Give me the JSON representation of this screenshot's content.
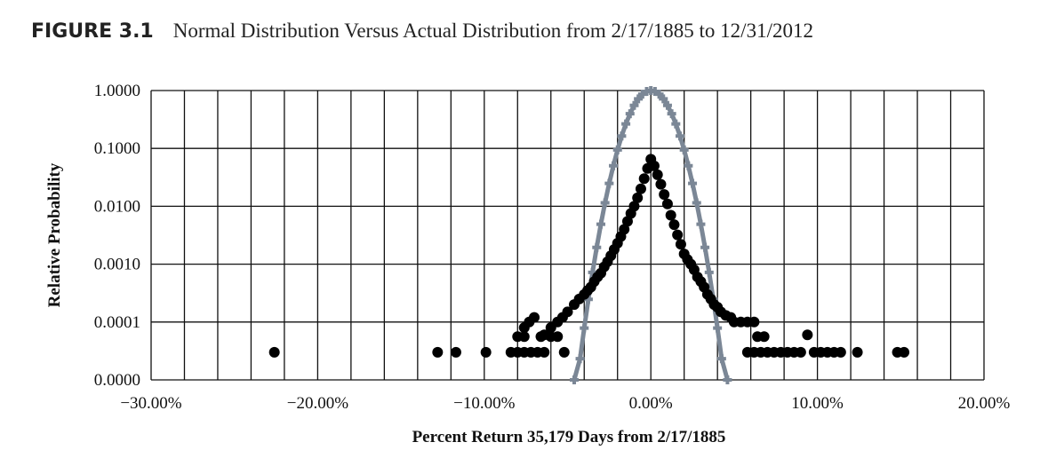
{
  "figure_label": "FIGURE 3.1",
  "chart_data": {
    "type": "scatter",
    "title": "Normal Distribution Versus Actual Distribution from 2/17/1885 to 12/31/2012",
    "xlabel": "Percent Return 35,179 Days from 2/17/1885",
    "ylabel": "Relative Probability",
    "xlim": [
      -30,
      20
    ],
    "ylim": [
      1e-05,
      1
    ],
    "yscale": "log",
    "grid": true,
    "x_grid_step": 2,
    "x_tick_labels": [
      "−30.00%",
      "−20.00%",
      "−10.00%",
      "0.00%",
      "10.00%",
      "20.00%"
    ],
    "x_tick_values": [
      -30,
      -20,
      -10,
      0,
      10,
      20
    ],
    "y_tick_labels": [
      "1.0000",
      "0.1000",
      "0.0100",
      "0.0010",
      "0.0001",
      "0.0000"
    ],
    "y_tick_values": [
      1,
      0.1,
      0.01,
      0.001,
      0.0001,
      1e-05
    ],
    "series": [
      {
        "color": "#7b8796",
        "marker": "cross",
        "points": [
          [
            -4.6,
            1e-05
          ],
          [
            -4.25,
            2.32e-05
          ],
          [
            -4.0,
            7.85e-05
          ],
          [
            -3.75,
            0.000247
          ],
          [
            -3.5,
            0.00072
          ],
          [
            -3.25,
            0.00195
          ],
          [
            -3.0,
            0.0049
          ],
          [
            -2.75,
            0.0115
          ],
          [
            -2.5,
            0.0249
          ],
          [
            -2.25,
            0.0502
          ],
          [
            -2.0,
            0.0941
          ],
          [
            -1.75,
            0.164
          ],
          [
            -1.5,
            0.265
          ],
          [
            -1.25,
            0.397
          ],
          [
            -1.0,
            0.554
          ],
          [
            -0.75,
            0.717
          ],
          [
            -0.5,
            0.863
          ],
          [
            -0.25,
            0.964
          ],
          [
            0,
            1
          ],
          [
            0.25,
            0.964
          ],
          [
            0.5,
            0.863
          ],
          [
            0.75,
            0.717
          ],
          [
            1.0,
            0.554
          ],
          [
            1.25,
            0.397
          ],
          [
            1.5,
            0.265
          ],
          [
            1.75,
            0.164
          ],
          [
            2.0,
            0.0941
          ],
          [
            2.25,
            0.0502
          ],
          [
            2.5,
            0.0249
          ],
          [
            2.75,
            0.0115
          ],
          [
            3.0,
            0.0049
          ],
          [
            3.25,
            0.00195
          ],
          [
            3.5,
            0.00072
          ],
          [
            3.75,
            0.000247
          ],
          [
            4.0,
            7.85e-05
          ],
          [
            4.25,
            2.32e-05
          ],
          [
            4.6,
            1e-05
          ]
        ]
      },
      {
        "color": "#000000",
        "marker": "circle",
        "points": [
          [
            0,
            0.065
          ],
          [
            -0.2,
            0.045
          ],
          [
            -0.4,
            0.03
          ],
          [
            -0.6,
            0.02
          ],
          [
            -0.8,
            0.014
          ],
          [
            -1.0,
            0.01
          ],
          [
            -1.2,
            0.0075
          ],
          [
            -1.4,
            0.0055
          ],
          [
            -1.6,
            0.004
          ],
          [
            -1.8,
            0.003
          ],
          [
            -2.0,
            0.0023
          ],
          [
            -2.2,
            0.0018
          ],
          [
            -2.4,
            0.0014
          ],
          [
            -2.6,
            0.0011
          ],
          [
            -2.8,
            0.0009
          ],
          [
            -3.0,
            0.0007
          ],
          [
            -3.2,
            0.0006
          ],
          [
            -3.4,
            0.0005
          ],
          [
            -3.6,
            0.0004
          ],
          [
            -3.8,
            0.00035
          ],
          [
            -4.0,
            0.0003
          ],
          [
            -4.3,
            0.00025
          ],
          [
            -4.6,
            0.0002
          ],
          [
            -5.0,
            0.00015
          ],
          [
            -5.3,
            0.00012
          ],
          [
            -5.6,
            0.0001
          ],
          [
            -6.0,
            8e-05
          ],
          [
            -6.4,
            6e-05
          ],
          [
            -7.0,
            0.00012
          ],
          [
            -7.3,
            0.0001
          ],
          [
            -7.6,
            8e-05
          ],
          [
            0.2,
            0.05
          ],
          [
            0.4,
            0.035
          ],
          [
            0.6,
            0.024
          ],
          [
            0.8,
            0.016
          ],
          [
            1.0,
            0.011
          ],
          [
            1.2,
            0.007
          ],
          [
            1.4,
            0.0048
          ],
          [
            1.6,
            0.0032
          ],
          [
            1.8,
            0.0022
          ],
          [
            2.0,
            0.0015
          ],
          [
            2.2,
            0.0012
          ],
          [
            2.4,
            0.001
          ],
          [
            2.6,
            0.0008
          ],
          [
            2.8,
            0.0006
          ],
          [
            3.0,
            0.0005
          ],
          [
            3.2,
            0.0004
          ],
          [
            3.4,
            0.0003
          ],
          [
            3.6,
            0.00025
          ],
          [
            3.8,
            0.0002
          ],
          [
            4.0,
            0.00018
          ],
          [
            4.2,
            0.00015
          ],
          [
            4.5,
            0.00013
          ],
          [
            4.8,
            0.00012
          ],
          [
            5.0,
            0.0001
          ],
          [
            5.4,
            0.0001
          ],
          [
            5.8,
            0.0001
          ],
          [
            6.2,
            0.0001
          ],
          [
            6.4,
            5.6e-05
          ],
          [
            6.8,
            5.6e-05
          ],
          [
            9.4,
            6e-05
          ],
          [
            -8.0,
            5.6e-05
          ],
          [
            -7.6,
            5.6e-05
          ],
          [
            -6.6,
            5.6e-05
          ],
          [
            -6.0,
            5.6e-05
          ],
          [
            -5.6,
            5.6e-05
          ],
          [
            -22.6,
            3e-05
          ],
          [
            -12.8,
            3e-05
          ],
          [
            -11.7,
            3e-05
          ],
          [
            -9.9,
            3e-05
          ],
          [
            -8.4,
            3e-05
          ],
          [
            -8.0,
            3e-05
          ],
          [
            -7.6,
            3e-05
          ],
          [
            -7.2,
            3e-05
          ],
          [
            -6.8,
            3e-05
          ],
          [
            -6.4,
            3e-05
          ],
          [
            -5.2,
            3e-05
          ],
          [
            5.8,
            3e-05
          ],
          [
            6.2,
            3e-05
          ],
          [
            6.6,
            3e-05
          ],
          [
            7.0,
            3e-05
          ],
          [
            7.4,
            3e-05
          ],
          [
            7.8,
            3e-05
          ],
          [
            8.2,
            3e-05
          ],
          [
            8.6,
            3e-05
          ],
          [
            9.0,
            3e-05
          ],
          [
            9.8,
            3e-05
          ],
          [
            10.2,
            3e-05
          ],
          [
            10.6,
            3e-05
          ],
          [
            11.0,
            3e-05
          ],
          [
            11.4,
            3e-05
          ],
          [
            12.4,
            3e-05
          ],
          [
            14.8,
            3e-05
          ],
          [
            15.2,
            3e-05
          ]
        ]
      }
    ]
  }
}
